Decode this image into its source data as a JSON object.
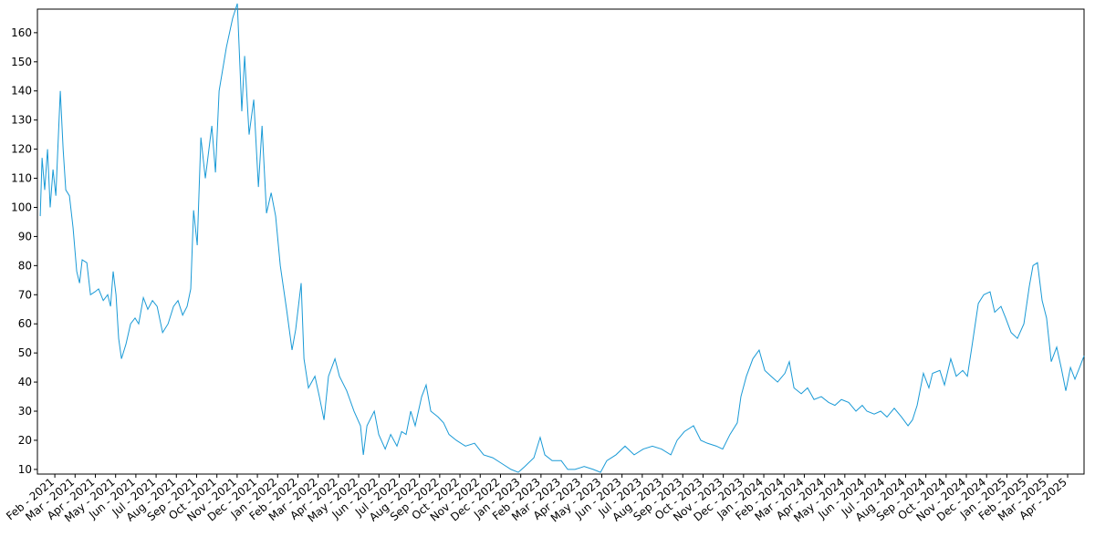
{
  "chart_data": {
    "type": "line",
    "color": "#1a9ad6",
    "xlim": [
      -0.86,
      50.81
    ],
    "ylim": [
      8.4,
      168.1
    ],
    "yticks": [
      10,
      20,
      30,
      40,
      50,
      60,
      70,
      80,
      90,
      100,
      110,
      120,
      130,
      140,
      150,
      160
    ],
    "xticks": [
      {
        "value": 0,
        "label": "Feb - 2021"
      },
      {
        "value": 1,
        "label": "Mar - 2021"
      },
      {
        "value": 2,
        "label": "Apr - 2021"
      },
      {
        "value": 3,
        "label": "May - 2021"
      },
      {
        "value": 4,
        "label": "Jun - 2021"
      },
      {
        "value": 5,
        "label": "Jul - 2021"
      },
      {
        "value": 6,
        "label": "Aug - 2021"
      },
      {
        "value": 7,
        "label": "Sep - 2021"
      },
      {
        "value": 8,
        "label": "Oct - 2021"
      },
      {
        "value": 9,
        "label": "Nov - 2021"
      },
      {
        "value": 10,
        "label": "Dec - 2021"
      },
      {
        "value": 11,
        "label": "Jan - 2022"
      },
      {
        "value": 12,
        "label": "Feb - 2022"
      },
      {
        "value": 13,
        "label": "Mar - 2022"
      },
      {
        "value": 14,
        "label": "Apr - 2022"
      },
      {
        "value": 15,
        "label": "May - 2022"
      },
      {
        "value": 16,
        "label": "Jun - 2022"
      },
      {
        "value": 17,
        "label": "Jul - 2022"
      },
      {
        "value": 18,
        "label": "Aug - 2022"
      },
      {
        "value": 19,
        "label": "Sep - 2022"
      },
      {
        "value": 20,
        "label": "Oct - 2022"
      },
      {
        "value": 21,
        "label": "Nov - 2022"
      },
      {
        "value": 22,
        "label": "Dec - 2022"
      },
      {
        "value": 23,
        "label": "Jan - 2023"
      },
      {
        "value": 24,
        "label": "Feb - 2023"
      },
      {
        "value": 25,
        "label": "Mar - 2023"
      },
      {
        "value": 26,
        "label": "Apr - 2023"
      },
      {
        "value": 27,
        "label": "May - 2023"
      },
      {
        "value": 28,
        "label": "Jun - 2023"
      },
      {
        "value": 29,
        "label": "Jul - 2023"
      },
      {
        "value": 30,
        "label": "Aug - 2023"
      },
      {
        "value": 31,
        "label": "Sep - 2023"
      },
      {
        "value": 32,
        "label": "Oct - 2023"
      },
      {
        "value": 33,
        "label": "Nov - 2023"
      },
      {
        "value": 34,
        "label": "Dec - 2023"
      },
      {
        "value": 35,
        "label": "Jan - 2024"
      },
      {
        "value": 36,
        "label": "Feb - 2024"
      },
      {
        "value": 37,
        "label": "Mar - 2024"
      },
      {
        "value": 38,
        "label": "Apr - 2024"
      },
      {
        "value": 39,
        "label": "May - 2024"
      },
      {
        "value": 40,
        "label": "Jun - 2024"
      },
      {
        "value": 41,
        "label": "Jul - 2024"
      },
      {
        "value": 42,
        "label": "Aug - 2024"
      },
      {
        "value": 43,
        "label": "Sep - 2024"
      },
      {
        "value": 44,
        "label": "Oct - 2024"
      },
      {
        "value": 45,
        "label": "Nov - 2024"
      },
      {
        "value": 46,
        "label": "Dec - 2024"
      },
      {
        "value": 47,
        "label": "Jan - 2025"
      },
      {
        "value": 48,
        "label": "Feb - 2025"
      },
      {
        "value": 49,
        "label": "Mar - 2025"
      },
      {
        "value": 50,
        "label": "Apr - 2025"
      }
    ],
    "x": [
      -0.72,
      -0.63,
      -0.5,
      -0.36,
      -0.23,
      -0.09,
      0.05,
      0.27,
      0.41,
      0.54,
      0.72,
      0.9,
      1.08,
      1.22,
      1.35,
      1.58,
      1.76,
      1.98,
      2.16,
      2.39,
      2.61,
      2.75,
      2.88,
      3.02,
      3.15,
      3.29,
      3.51,
      3.74,
      3.96,
      4.14,
      4.37,
      4.59,
      4.82,
      5.05,
      5.32,
      5.59,
      5.86,
      6.08,
      6.31,
      6.53,
      6.71,
      6.85,
      7.03,
      7.21,
      7.43,
      7.75,
      7.93,
      8.11,
      8.47,
      8.78,
      9.01,
      9.23,
      9.37,
      9.59,
      9.82,
      10.05,
      10.23,
      10.45,
      10.68,
      10.9,
      11.13,
      11.44,
      11.71,
      11.89,
      12.16,
      12.3,
      12.52,
      12.84,
      13.06,
      13.29,
      13.51,
      13.83,
      14.05,
      14.41,
      14.77,
      15.09,
      15.23,
      15.41,
      15.77,
      15.99,
      16.31,
      16.58,
      16.89,
      17.12,
      17.34,
      17.57,
      17.79,
      18.11,
      18.33,
      18.56,
      18.92,
      19.19,
      19.46,
      19.82,
      20.27,
      20.72,
      21.17,
      21.62,
      22.07,
      22.52,
      22.88,
      23.2,
      23.65,
      23.96,
      24.19,
      24.55,
      25.0,
      25.32,
      25.68,
      26.13,
      26.58,
      26.94,
      27.25,
      27.7,
      28.15,
      28.6,
      29.05,
      29.5,
      29.95,
      30.41,
      30.72,
      31.08,
      31.53,
      31.89,
      32.21,
      32.66,
      32.97,
      33.33,
      33.69,
      33.87,
      34.14,
      34.46,
      34.77,
      35.05,
      35.36,
      35.68,
      36.04,
      36.26,
      36.49,
      36.85,
      37.16,
      37.48,
      37.84,
      38.2,
      38.51,
      38.83,
      39.19,
      39.55,
      39.86,
      40.09,
      40.45,
      40.77,
      41.08,
      41.44,
      41.8,
      42.12,
      42.34,
      42.57,
      42.88,
      43.15,
      43.33,
      43.69,
      43.92,
      44.23,
      44.5,
      44.82,
      45.05,
      45.27,
      45.59,
      45.86,
      46.17,
      46.4,
      46.71,
      46.94,
      47.21,
      47.52,
      47.84,
      48.11,
      48.29,
      48.51,
      48.74,
      48.96,
      49.19,
      49.46,
      49.68,
      49.91,
      50.14,
      50.36,
      50.59,
      50.81
    ],
    "values": [
      97,
      117,
      106,
      120,
      100,
      113,
      104,
      140,
      120,
      106,
      104,
      93,
      78,
      74,
      82,
      81,
      70,
      71,
      72,
      68,
      70,
      66,
      78,
      70,
      55,
      48,
      53,
      60,
      62,
      60,
      69,
      65,
      68,
      66,
      57,
      60,
      66,
      68,
      63,
      66,
      72,
      99,
      87,
      124,
      110,
      128,
      112,
      140,
      155,
      165,
      170,
      133,
      152,
      125,
      137,
      107,
      128,
      98,
      105,
      97,
      80,
      65,
      51,
      58,
      74,
      48,
      38,
      42,
      35,
      27,
      42,
      48,
      42,
      37,
      30,
      25,
      15,
      25,
      30,
      22,
      17,
      22,
      18,
      23,
      22,
      30,
      25,
      35,
      39,
      30,
      28,
      26,
      22,
      20,
      18,
      19,
      15,
      14,
      12,
      10,
      9,
      11,
      14,
      21,
      15,
      13,
      13,
      10,
      10,
      11,
      10,
      9,
      13,
      15,
      18,
      15,
      17,
      18,
      17,
      15,
      20,
      23,
      25,
      20,
      19,
      18,
      17,
      22,
      26,
      35,
      42,
      48,
      51,
      44,
      42,
      40,
      43,
      47,
      38,
      36,
      38,
      34,
      35,
      33,
      32,
      34,
      33,
      30,
      32,
      30,
      29,
      30,
      28,
      31,
      28,
      25,
      27,
      32,
      43,
      38,
      43,
      44,
      39,
      48,
      42,
      44,
      42,
      52,
      67,
      70,
      71,
      64,
      66,
      62,
      57,
      55,
      60,
      73,
      80,
      81,
      68,
      62,
      47,
      52,
      45,
      37,
      45,
      41,
      45,
      49
    ]
  }
}
